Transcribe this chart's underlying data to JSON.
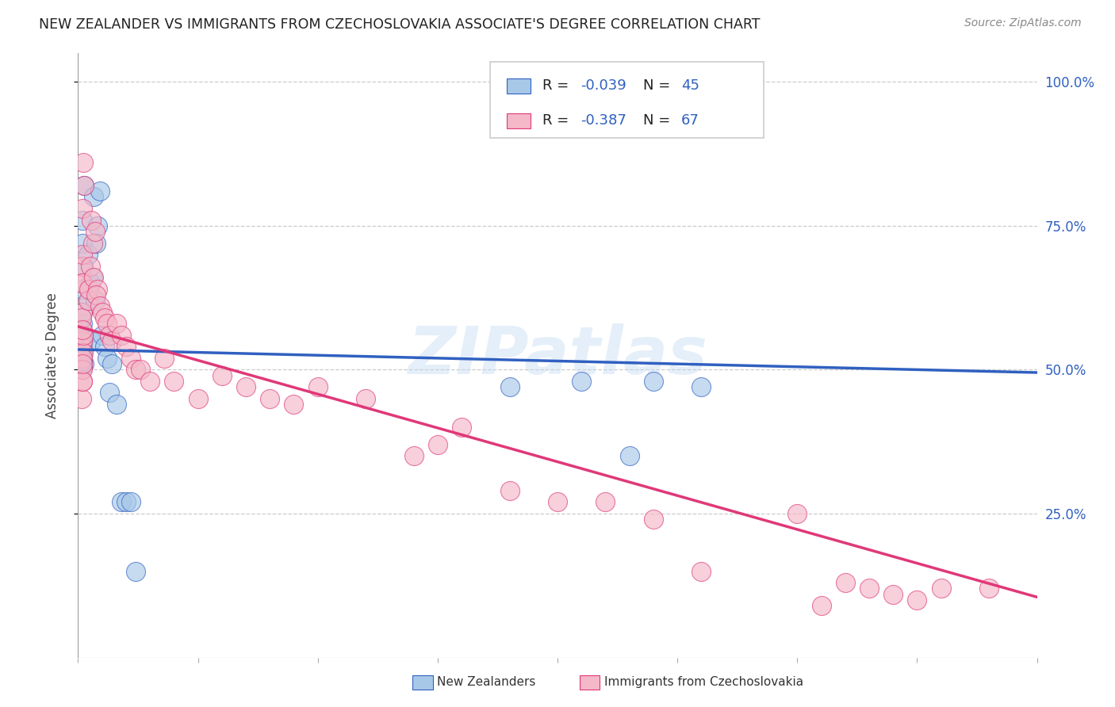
{
  "title": "NEW ZEALANDER VS IMMIGRANTS FROM CZECHOSLOVAKIA ASSOCIATE'S DEGREE CORRELATION CHART",
  "source": "Source: ZipAtlas.com",
  "ylabel": "Associate's Degree",
  "ytick_labels": [
    "100.0%",
    "75.0%",
    "50.0%",
    "25.0%"
  ],
  "ytick_positions": [
    1.0,
    0.75,
    0.5,
    0.25
  ],
  "xlim": [
    0.0,
    0.2
  ],
  "ylim": [
    0.0,
    1.05
  ],
  "watermark": "ZIPatlas",
  "legend_r1": "R = ",
  "legend_v1": "-0.039",
  "legend_n1_label": "N = ",
  "legend_n1_val": "45",
  "legend_r2": "R = ",
  "legend_v2": "-0.387",
  "legend_n2_label": "N = ",
  "legend_n2_val": "67",
  "color_blue": "#a8c8e8",
  "color_pink": "#f4b8c8",
  "color_blue_line": "#3060c0",
  "color_pink_line": "#e03878",
  "color_blue_text": "#3060c0",
  "nz_x": [
    0.0008,
    0.001,
    0.0012,
    0.0008,
    0.001,
    0.0009,
    0.0011,
    0.001,
    0.0008,
    0.0009,
    0.001,
    0.0011,
    0.0009,
    0.001,
    0.0008,
    0.001,
    0.0012,
    0.0011,
    0.0009,
    0.001,
    0.002,
    0.0025,
    0.0022,
    0.003,
    0.0028,
    0.0035,
    0.0032,
    0.004,
    0.0038,
    0.0045,
    0.005,
    0.0055,
    0.006,
    0.0065,
    0.007,
    0.008,
    0.009,
    0.01,
    0.011,
    0.012,
    0.09,
    0.105,
    0.12,
    0.115,
    0.13
  ],
  "nz_y": [
    0.53,
    0.545,
    0.51,
    0.52,
    0.515,
    0.525,
    0.535,
    0.505,
    0.54,
    0.515,
    0.56,
    0.55,
    0.58,
    0.6,
    0.57,
    0.72,
    0.82,
    0.68,
    0.64,
    0.76,
    0.7,
    0.65,
    0.62,
    0.66,
    0.55,
    0.62,
    0.8,
    0.75,
    0.72,
    0.81,
    0.56,
    0.54,
    0.52,
    0.46,
    0.51,
    0.44,
    0.27,
    0.27,
    0.27,
    0.15,
    0.47,
    0.48,
    0.48,
    0.35,
    0.47
  ],
  "cz_x": [
    0.0008,
    0.0009,
    0.001,
    0.0008,
    0.001,
    0.0009,
    0.0011,
    0.001,
    0.0008,
    0.0009,
    0.001,
    0.0011,
    0.0009,
    0.001,
    0.0008,
    0.001,
    0.0012,
    0.0011,
    0.0009,
    0.001,
    0.002,
    0.0025,
    0.0022,
    0.003,
    0.0028,
    0.0035,
    0.0032,
    0.004,
    0.0038,
    0.0045,
    0.005,
    0.0055,
    0.006,
    0.0065,
    0.007,
    0.008,
    0.009,
    0.01,
    0.011,
    0.012,
    0.013,
    0.015,
    0.018,
    0.02,
    0.025,
    0.03,
    0.035,
    0.04,
    0.045,
    0.05,
    0.06,
    0.07,
    0.075,
    0.08,
    0.09,
    0.1,
    0.11,
    0.12,
    0.13,
    0.15,
    0.155,
    0.16,
    0.165,
    0.17,
    0.175,
    0.18,
    0.19
  ],
  "cz_y": [
    0.54,
    0.6,
    0.55,
    0.65,
    0.68,
    0.7,
    0.53,
    0.52,
    0.45,
    0.48,
    0.5,
    0.56,
    0.48,
    0.51,
    0.59,
    0.57,
    0.82,
    0.86,
    0.78,
    0.65,
    0.62,
    0.68,
    0.64,
    0.72,
    0.76,
    0.74,
    0.66,
    0.64,
    0.63,
    0.61,
    0.6,
    0.59,
    0.58,
    0.56,
    0.55,
    0.58,
    0.56,
    0.54,
    0.52,
    0.5,
    0.5,
    0.48,
    0.52,
    0.48,
    0.45,
    0.49,
    0.47,
    0.45,
    0.44,
    0.47,
    0.45,
    0.35,
    0.37,
    0.4,
    0.29,
    0.27,
    0.27,
    0.24,
    0.15,
    0.25,
    0.09,
    0.13,
    0.12,
    0.11,
    0.1,
    0.12,
    0.12
  ],
  "nz_trend_x": [
    0.0,
    0.2
  ],
  "nz_trend_y": [
    0.535,
    0.495
  ],
  "cz_trend_x": [
    0.0,
    0.2
  ],
  "cz_trend_y": [
    0.575,
    0.105
  ],
  "background_color": "#ffffff",
  "grid_color": "#cccccc"
}
